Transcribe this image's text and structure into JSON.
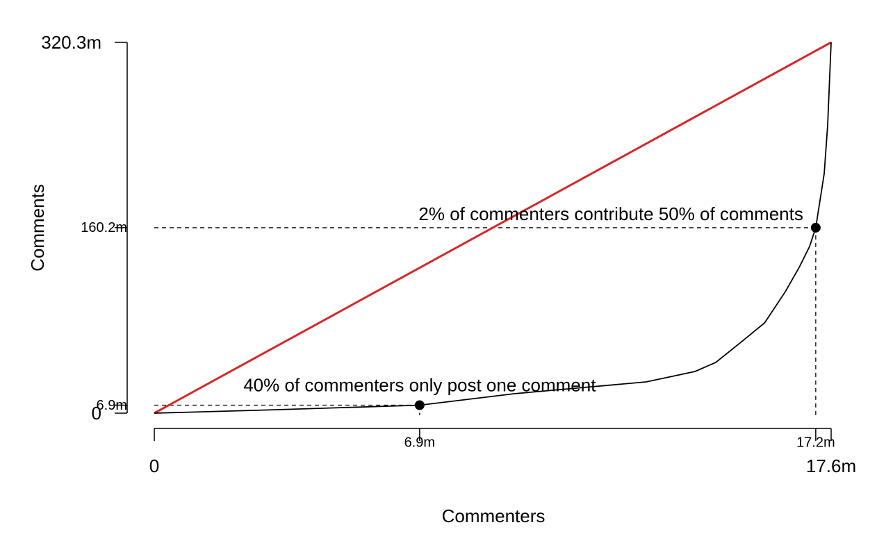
{
  "chart_data": {
    "type": "line",
    "xlabel": "Commenters",
    "ylabel": "Comments",
    "xlim": [
      0,
      17.6
    ],
    "ylim": [
      0,
      320.3
    ],
    "xticks": [
      0,
      {
        "value": 6.9,
        "label": "6.9m"
      },
      {
        "value": 17.2,
        "label": "17.2m"
      },
      {
        "value": 17.6,
        "label": "17.6m"
      }
    ],
    "yticks": [
      0,
      {
        "value": 6.9,
        "label": "6.9m"
      },
      {
        "value": 160.2,
        "label": "160.2m"
      },
      {
        "value": 320.3,
        "label": "320.3m"
      }
    ],
    "series": [
      {
        "color": "#d62728",
        "x": [
          0,
          17.6
        ],
        "values": [
          0,
          320.3
        ]
      },
      {
        "color": "#000000",
        "x": [
          0,
          3.2,
          6.9,
          9.36,
          12.79,
          14.06,
          14.6,
          15.32,
          15.87,
          16.41,
          16.77,
          17.04,
          17.2,
          17.42,
          17.51,
          17.6
        ],
        "values": [
          0,
          3,
          6.9,
          16.8,
          27,
          36,
          43.8,
          63,
          78,
          105,
          126,
          144,
          160.2,
          207,
          249,
          320.3
        ]
      }
    ],
    "highlights": [
      {
        "x": 6.9,
        "y": 6.9,
        "label": "40% of commenters only post one comment"
      },
      {
        "x": 17.2,
        "y": 160.2,
        "label": "2% of commenters contribute 50% of comments"
      }
    ]
  }
}
